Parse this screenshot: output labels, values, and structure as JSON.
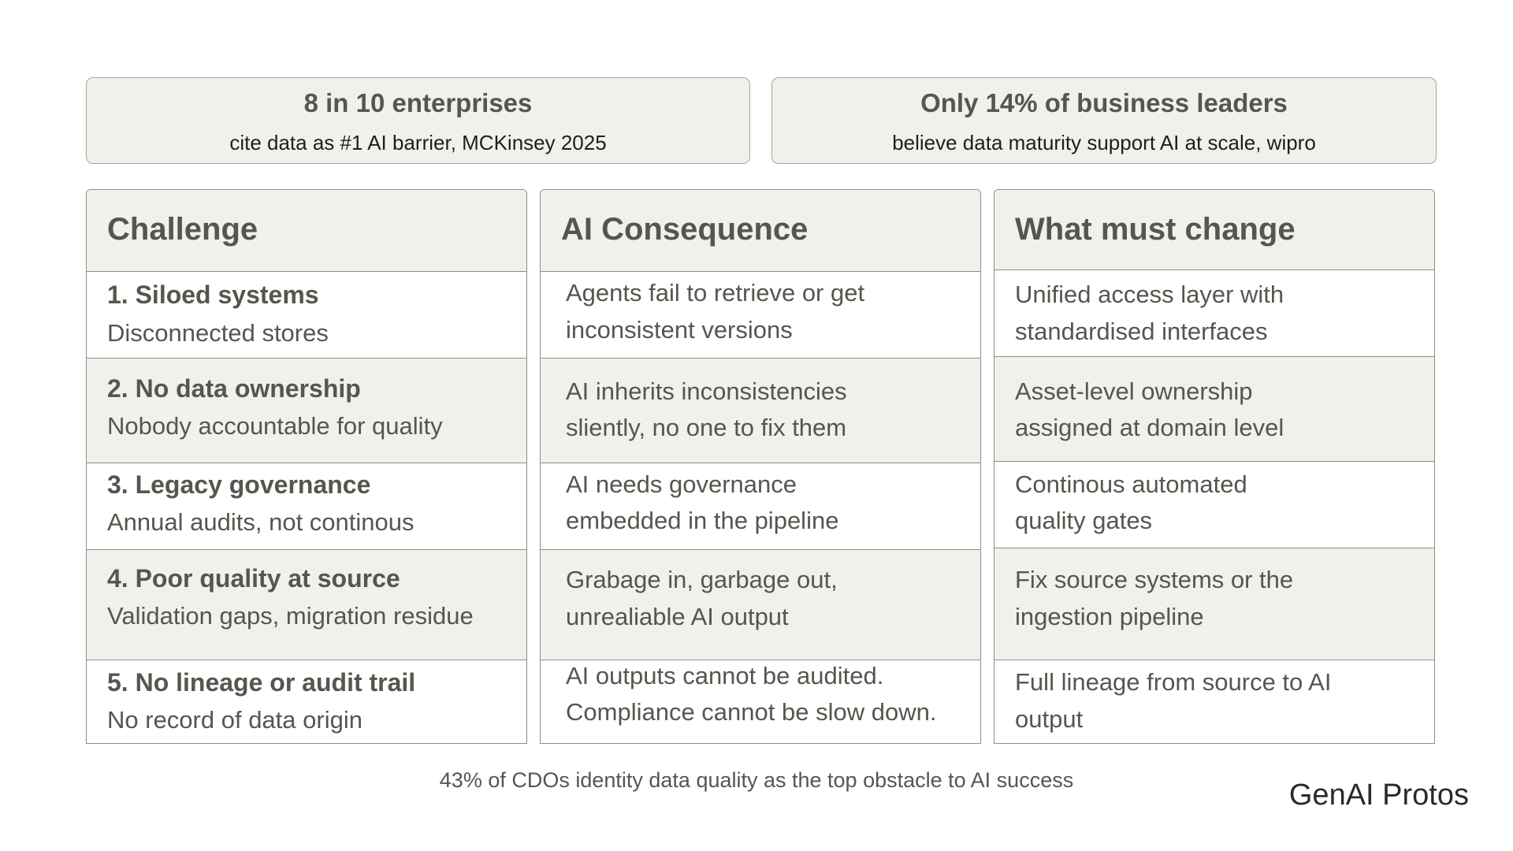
{
  "stats": [
    {
      "headline": "8 in 10 enterprises",
      "sub": "cite data as #1 AI barrier, MCKinsey 2025"
    },
    {
      "headline": "Only 14% of business leaders",
      "sub": "believe data maturity support AI at scale, wipro"
    }
  ],
  "columns": {
    "challenge": {
      "header": "Challenge"
    },
    "consequence": {
      "header": "AI Consequence"
    },
    "change": {
      "header": "What must change"
    }
  },
  "rows": [
    {
      "challenge_title": "1. Siloed systems",
      "challenge_sub": "Disconnected stores",
      "consequence": [
        "Agents fail to retrieve or get",
        "inconsistent versions"
      ],
      "change": [
        "Unified access layer with",
        "standardised interfaces"
      ]
    },
    {
      "challenge_title": "2. No data ownership",
      "challenge_sub": "Nobody accountable for quality",
      "consequence": [
        "AI inherits inconsistencies",
        "sliently, no one to fix them"
      ],
      "change": [
        "Asset-level ownership",
        "assigned at domain level"
      ]
    },
    {
      "challenge_title": "3. Legacy governance",
      "challenge_sub": "Annual audits, not continous",
      "consequence": [
        "AI needs governance",
        "embedded in the pipeline"
      ],
      "change": [
        "Continous automated",
        "quality gates"
      ]
    },
    {
      "challenge_title": "4. Poor quality at source",
      "challenge_sub": "Validation gaps, migration residue",
      "consequence": [
        "Grabage in, garbage out,",
        "unrealiable AI output"
      ],
      "change": [
        "Fix source systems or the",
        "ingestion pipeline"
      ]
    },
    {
      "challenge_title": "5. No lineage or audit trail",
      "challenge_sub": "No record of data origin",
      "consequence": [
        "AI outputs cannot be audited.",
        "Compliance cannot be slow down."
      ],
      "change": [
        "Full lineage from source to AI",
        "output"
      ]
    }
  ],
  "footer": {
    "note": "43% of CDOs identity data quality as the top obstacle to AI success",
    "brand": "GenAI Protos"
  }
}
